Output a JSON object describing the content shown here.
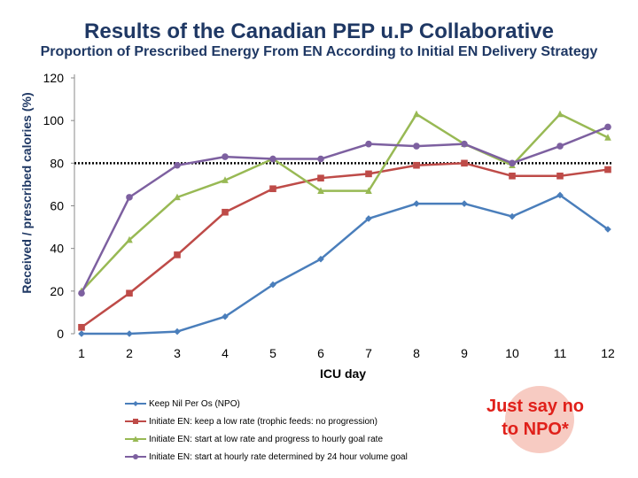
{
  "title": "Results of the Canadian PEP u.P Collaborative",
  "subtitle": "Proportion of Prescribed Energy From EN According to Initial EN Delivery Strategy",
  "stamp": {
    "line1": "Just say no",
    "line2": "to NPO*"
  },
  "chart_data": {
    "type": "line",
    "xlabel": "ICU day",
    "ylabel": "Received / prescribed calories (%)",
    "categories": [
      "1",
      "2",
      "3",
      "4",
      "5",
      "6",
      "7",
      "8",
      "9",
      "10",
      "11",
      "12"
    ],
    "ylim": [
      0,
      120
    ],
    "yticks": [
      "0",
      "20",
      "40",
      "60",
      "80",
      "100",
      "120"
    ],
    "reference_line": {
      "value": 80,
      "style": "dotted"
    },
    "series": [
      {
        "name": "Keep Nil Per Os (NPO)",
        "color": "#4a7ebb",
        "marker": "diamond",
        "values": [
          0,
          0,
          1,
          8,
          23,
          35,
          54,
          61,
          61,
          55,
          65,
          49
        ]
      },
      {
        "name": "Initiate EN: keep a low rate (trophic feeds: no progression)",
        "color": "#be4b48",
        "marker": "square",
        "values": [
          3,
          19,
          37,
          57,
          68,
          73,
          75,
          79,
          80,
          74,
          74,
          77
        ]
      },
      {
        "name": "Initiate EN: start at low rate and progress to hourly goal rate",
        "color": "#98b954",
        "marker": "triangle",
        "values": [
          20,
          44,
          64,
          72,
          82,
          67,
          67,
          103,
          89,
          79,
          103,
          92
        ]
      },
      {
        "name": "Initiate EN: start at hourly rate determined by 24 hour volume goal",
        "color": "#7d60a0",
        "marker": "circle",
        "values": [
          19,
          64,
          79,
          83,
          82,
          82,
          89,
          88,
          89,
          80,
          88,
          97
        ]
      }
    ]
  }
}
